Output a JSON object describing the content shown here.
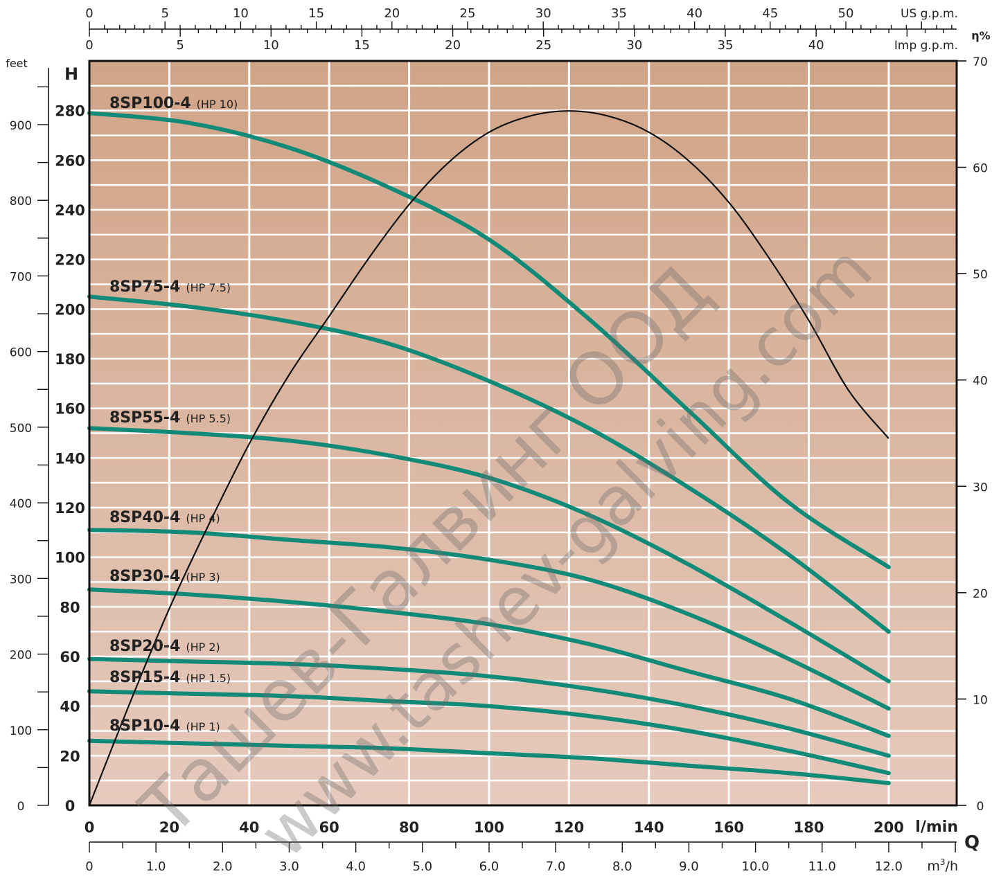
{
  "chart_data": {
    "type": "line",
    "y_axis_label": "H",
    "feet_axis_label": "feet",
    "efficiency_axis_label": "η%",
    "flow_axis_label": "Q",
    "top_axis_us_unit": "US g.p.m.",
    "top_axis_imp_unit": "Imp g.p.m.",
    "bottom_axis_lmin_unit": "l/min",
    "bottom_axis_m3h_unit_base": "m",
    "bottom_axis_m3h_unit_sup": "3",
    "bottom_axis_m3h_unit_tail": "/h",
    "us_gpm_ticks": [
      "0",
      "5",
      "10",
      "15",
      "20",
      "25",
      "30",
      "35",
      "40",
      "45",
      "50"
    ],
    "imp_gpm_ticks": [
      "0",
      "5",
      "10",
      "15",
      "20",
      "25",
      "30",
      "35",
      "40"
    ],
    "lmin_ticks": [
      "0",
      "20",
      "40",
      "60",
      "80",
      "100",
      "120",
      "140",
      "160",
      "180",
      "200"
    ],
    "m3h_ticks": [
      "0",
      "1.0",
      "2.0",
      "3.0",
      "4.0",
      "5.0",
      "6.0",
      "7.0",
      "8.0",
      "9.0",
      "10.0",
      "11.0",
      "12.0"
    ],
    "head_m_ticks": [
      "0",
      "20",
      "40",
      "60",
      "80",
      "100",
      "120",
      "140",
      "160",
      "180",
      "200",
      "220",
      "240",
      "260",
      "280"
    ],
    "feet_ticks": [
      "0",
      "100",
      "200",
      "300",
      "400",
      "500",
      "600",
      "700",
      "800",
      "900"
    ],
    "eta_ticks": [
      "0",
      "10",
      "20",
      "30",
      "40",
      "50",
      "60",
      "70"
    ],
    "xlim": [
      0,
      217
    ],
    "ylim": [
      0,
      300
    ],
    "eta_lim": [
      0,
      70
    ],
    "colors": {
      "bg_top": "#d0a487",
      "bg_bottom": "#e6cabd",
      "curve": "#128a78",
      "efficiency": "#111111",
      "grid": "#ffffff"
    },
    "series": [
      {
        "name": "8SP100-4",
        "hp": "(HP 10)",
        "x": [
          0,
          25,
          50,
          75,
          100,
          125,
          150,
          175,
          200
        ],
        "y": [
          279,
          275,
          265,
          249,
          228,
          196,
          159,
          122,
          96
        ]
      },
      {
        "name": "8SP75-4",
        "hp": "(HP 7.5)",
        "x": [
          0,
          25,
          50,
          75,
          100,
          125,
          150,
          175,
          200
        ],
        "y": [
          205,
          201,
          195,
          186,
          171,
          152,
          128,
          101,
          70
        ]
      },
      {
        "name": "8SP55-4",
        "hp": "(HP 5.5)",
        "x": [
          0,
          25,
          50,
          75,
          100,
          125,
          150,
          175,
          200
        ],
        "y": [
          152,
          150,
          147,
          141,
          132,
          117,
          97,
          74,
          50
        ]
      },
      {
        "name": "8SP40-4",
        "hp": "(HP 4)",
        "x": [
          0,
          25,
          50,
          75,
          100,
          125,
          150,
          175,
          200
        ],
        "y": [
          111,
          110,
          107,
          104,
          99,
          91,
          77,
          59,
          39
        ]
      },
      {
        "name": "8SP30-4",
        "hp": "(HP 3)",
        "x": [
          0,
          25,
          50,
          75,
          100,
          125,
          150,
          175,
          200
        ],
        "y": [
          87,
          85,
          82,
          78,
          73,
          65,
          54,
          43,
          28
        ]
      },
      {
        "name": "8SP20-4",
        "hp": "(HP 2)",
        "x": [
          0,
          25,
          50,
          75,
          100,
          125,
          150,
          175,
          200
        ],
        "y": [
          59,
          58,
          57,
          55,
          52,
          47,
          40,
          31,
          20
        ]
      },
      {
        "name": "8SP15-4",
        "hp": "(HP 1.5)",
        "x": [
          0,
          25,
          50,
          75,
          100,
          125,
          150,
          175,
          200
        ],
        "y": [
          46,
          45,
          44,
          42,
          40,
          36,
          30,
          22,
          13
        ]
      },
      {
        "name": "8SP10-4",
        "hp": "(HP 1)",
        "x": [
          0,
          25,
          50,
          75,
          100,
          125,
          150,
          175,
          200
        ],
        "y": [
          26,
          25,
          24,
          23,
          21,
          19,
          16,
          13,
          9
        ]
      }
    ],
    "efficiency_curve": {
      "x": [
        0,
        10,
        20,
        30,
        40,
        50,
        60,
        70,
        80,
        90,
        100,
        110,
        120,
        130,
        140,
        150,
        160,
        170,
        180,
        190,
        200
      ],
      "eta": [
        0,
        9.5,
        18.5,
        26.5,
        34,
        40.5,
        46,
        51.5,
        56.5,
        60.5,
        63.3,
        64.8,
        65.3,
        64.8,
        63.3,
        60.6,
        56.7,
        51.5,
        45.6,
        39,
        34.5
      ]
    },
    "watermark_line1": "Ташев-Галвинг ООД",
    "watermark_line2": "www.tashev-galving.com"
  }
}
